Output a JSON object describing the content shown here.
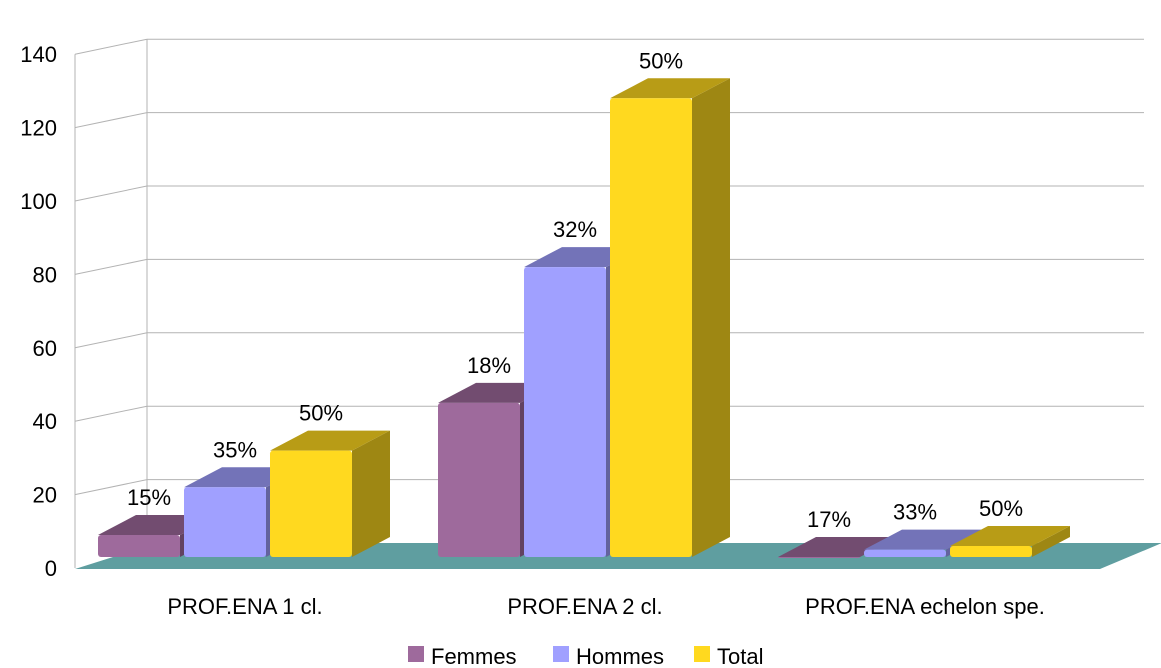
{
  "chart_data": {
    "type": "bar",
    "title": "",
    "xlabel": "",
    "ylabel": "",
    "ylim": [
      0,
      140
    ],
    "yticks": [
      0,
      20,
      40,
      60,
      80,
      100,
      120,
      140
    ],
    "grid": true,
    "legend_position": "bottom",
    "three_d": true,
    "floor_color": "#5f9ea0",
    "categories": [
      "PROF.ENA 1 cl.",
      "PROF.ENA 2 cl.",
      "PROF.ENA echelon spe."
    ],
    "series": [
      {
        "name": "Femmes",
        "color": "#9e6a9c",
        "values": [
          6,
          42,
          0
        ],
        "labels": [
          "15%",
          "18%",
          "17%"
        ]
      },
      {
        "name": "Hommes",
        "color": "#a0a0ff",
        "values": [
          19,
          79,
          2
        ],
        "labels": [
          "35%",
          "32%",
          "33%"
        ]
      },
      {
        "name": "Total",
        "color": "#ffd91f",
        "values": [
          29,
          125,
          3
        ],
        "labels": [
          "50%",
          "50%",
          "50%"
        ]
      }
    ]
  }
}
